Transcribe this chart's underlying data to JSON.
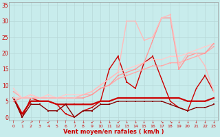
{
  "background_color": "#c8ecec",
  "grid_color": "#b8d8d8",
  "xlabel": "Vent moyen/en rafales ( km/h )",
  "x_ticks": [
    0,
    1,
    2,
    3,
    4,
    5,
    6,
    7,
    8,
    9,
    10,
    11,
    12,
    13,
    14,
    15,
    16,
    17,
    18,
    19,
    20,
    21,
    22,
    23
  ],
  "wind_dirs": [
    "↑",
    "↗",
    "↗",
    "↑",
    "↙",
    "↑",
    "↑",
    "↓",
    "↓",
    "↙",
    "↓",
    "↓",
    "↙",
    "↓",
    "↓",
    "↓",
    "↓",
    "↘",
    "↘",
    "↓",
    "↓",
    "↓",
    "↓",
    "↓"
  ],
  "ylim": [
    -1,
    36
  ],
  "y_ticks": [
    0,
    5,
    10,
    15,
    20,
    25,
    30,
    35
  ],
  "lines": [
    {
      "x": [
        0,
        1,
        2,
        3,
        4,
        5,
        6,
        7,
        8,
        9,
        10,
        11,
        12,
        13,
        14,
        15,
        16,
        17,
        18,
        19,
        20,
        21,
        22,
        23
      ],
      "y": [
        6,
        0,
        6,
        5,
        5,
        4,
        1,
        0,
        2,
        3,
        5,
        15,
        19,
        11,
        9,
        17,
        19,
        12,
        5,
        3,
        2,
        9,
        13,
        8
      ],
      "color": "#cc0000",
      "lw": 1.0,
      "marker": "s",
      "ms": 1.8
    },
    {
      "x": [
        0,
        1,
        2,
        3,
        4,
        5,
        6,
        7,
        8,
        9,
        10,
        11,
        12,
        13,
        14,
        15,
        16,
        17,
        18,
        19,
        20,
        21,
        22,
        23
      ],
      "y": [
        6,
        1,
        5,
        5,
        5,
        4,
        4,
        4,
        4,
        4,
        5,
        5,
        6,
        6,
        6,
        6,
        6,
        6,
        6,
        6,
        5,
        5,
        5,
        6
      ],
      "color": "#cc0000",
      "lw": 1.6,
      "marker": "s",
      "ms": 1.8
    },
    {
      "x": [
        0,
        1,
        2,
        3,
        4,
        5,
        6,
        7,
        8,
        9,
        10,
        11,
        12,
        13,
        14,
        15,
        16,
        17,
        18,
        19,
        20,
        21,
        22,
        23
      ],
      "y": [
        6,
        0,
        4,
        4,
        2,
        2,
        4,
        0,
        2,
        2,
        4,
        4,
        5,
        5,
        5,
        5,
        5,
        5,
        4,
        3,
        2,
        3,
        3,
        4
      ],
      "color": "#880000",
      "lw": 1.0,
      "marker": "s",
      "ms": 1.8
    },
    {
      "x": [
        0,
        1,
        2,
        3,
        4,
        5,
        6,
        7,
        8,
        9,
        10,
        11,
        12,
        13,
        14,
        15,
        16,
        17,
        18,
        19,
        20,
        21,
        22,
        23
      ],
      "y": [
        8,
        6,
        7,
        6,
        6,
        6,
        6,
        6,
        7,
        7,
        9,
        10,
        12,
        13,
        14,
        15,
        16,
        16,
        17,
        17,
        18,
        19,
        20,
        22
      ],
      "color": "#ffaaaa",
      "lw": 1.0,
      "marker": "s",
      "ms": 1.8
    },
    {
      "x": [
        0,
        1,
        2,
        3,
        4,
        5,
        6,
        7,
        8,
        9,
        10,
        11,
        12,
        13,
        14,
        15,
        16,
        17,
        18,
        19,
        20,
        21,
        22,
        23
      ],
      "y": [
        9,
        6,
        7,
        6,
        7,
        6,
        7,
        7,
        7,
        8,
        10,
        12,
        14,
        15,
        16,
        17,
        18,
        18,
        19,
        19,
        20,
        21,
        22,
        23
      ],
      "color": "#ffcccc",
      "lw": 1.0,
      "marker": "s",
      "ms": 1.8
    },
    {
      "x": [
        0,
        1,
        2,
        3,
        4,
        5,
        6,
        7,
        8,
        9,
        10,
        11,
        12,
        13,
        14,
        15,
        16,
        17,
        18,
        19,
        20,
        21,
        22,
        23
      ],
      "y": [
        5,
        6,
        6,
        6,
        6,
        6,
        6,
        6,
        6,
        7,
        9,
        10,
        13,
        14,
        15,
        17,
        24,
        31,
        31,
        15,
        19,
        20,
        20,
        23
      ],
      "color": "#ff9999",
      "lw": 1.0,
      "marker": "s",
      "ms": 1.8
    },
    {
      "x": [
        0,
        1,
        2,
        3,
        4,
        5,
        6,
        7,
        8,
        9,
        10,
        11,
        12,
        13,
        14,
        15,
        16,
        17,
        18,
        19,
        20,
        21,
        22,
        23
      ],
      "y": [
        6,
        6,
        6,
        6,
        6,
        6,
        6,
        6,
        7,
        8,
        10,
        12,
        14,
        30,
        30,
        24,
        25,
        31,
        32,
        16,
        20,
        20,
        16,
        8
      ],
      "color": "#ffbbbb",
      "lw": 1.0,
      "marker": "s",
      "ms": 1.8
    }
  ]
}
